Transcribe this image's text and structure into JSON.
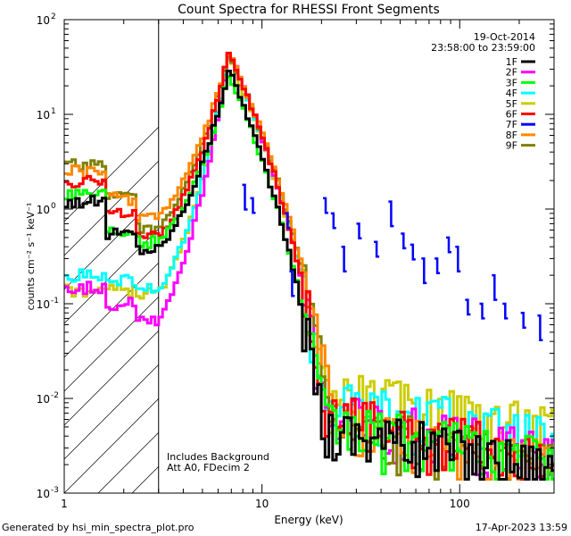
{
  "chart_data": {
    "type": "line",
    "title": "Count Spectra for RHESSI Front Segments",
    "xlabel": "Energy (keV)",
    "ylabel": "counts cm⁻² s⁻¹ keV⁻¹",
    "xscale": "log",
    "yscale": "log",
    "xlim": [
      1,
      300
    ],
    "ylim": [
      0.001,
      100
    ],
    "x_tick_labels": [
      "1",
      "10",
      "100"
    ],
    "y_tick_labels": [
      {
        "base": "10",
        "exp": "-3"
      },
      {
        "base": "10",
        "exp": "-2"
      },
      {
        "base": "10",
        "exp": "-1"
      },
      {
        "base": "10",
        "exp": "0"
      },
      {
        "base": "10",
        "exp": "1"
      },
      {
        "base": "10",
        "exp": "2"
      }
    ],
    "date": "19-Oct-2014",
    "time_range": "23:58:00 to 23:59:00",
    "annotations": [
      "Includes Background",
      "Att A0, FDecim 2"
    ],
    "excluded_region_below_keV": 3,
    "legend_position": "top-right",
    "series": [
      {
        "name": "1F",
        "color": "#000000",
        "peak": 30,
        "thermal_kT": 1.05,
        "floor": 0.0045,
        "low": [
          1.2,
          0.55,
          0.38
        ]
      },
      {
        "name": "2F",
        "color": "#ff00ff",
        "peak": 45,
        "thermal_kT": 1.1,
        "floor": 0.006,
        "low": [
          0.15,
          0.1,
          0.07
        ]
      },
      {
        "name": "3F",
        "color": "#00ff00",
        "peak": 26,
        "thermal_kT": 1.1,
        "floor": 0.005,
        "low": [
          1.5,
          0.6,
          0.45
        ]
      },
      {
        "name": "4F",
        "color": "#00ffff",
        "peak": 42,
        "thermal_kT": 1.15,
        "floor": 0.009,
        "low": [
          0.2,
          0.18,
          0.14
        ]
      },
      {
        "name": "5F",
        "color": "#cccc00",
        "peak": 40,
        "thermal_kT": 1.15,
        "floor": 0.011,
        "low": [
          0.14,
          0.14,
          0.13
        ]
      },
      {
        "name": "6F",
        "color": "#ff0000",
        "peak": 46,
        "thermal_kT": 1.1,
        "floor": 0.006,
        "low": [
          2.0,
          0.9,
          0.5
        ]
      },
      {
        "name": "7F",
        "color": "#0000ff",
        "peak": null,
        "thermal_kT": null,
        "floor": null,
        "low": [],
        "segments": [
          [
            8.2,
            1.8
          ],
          [
            9.0,
            1.3
          ],
          [
            13.5,
            0.9
          ],
          [
            14.2,
            0.22
          ],
          [
            21,
            1.3
          ],
          [
            23,
            0.9
          ],
          [
            26,
            0.4
          ],
          [
            31,
            0.7
          ],
          [
            38,
            0.45
          ],
          [
            45,
            1.2
          ],
          [
            52,
            0.55
          ],
          [
            58,
            0.42
          ],
          [
            66,
            0.3
          ],
          [
            77,
            0.3
          ],
          [
            88,
            0.5
          ],
          [
            98,
            0.4
          ],
          [
            110,
            0.11
          ],
          [
            130,
            0.1
          ],
          [
            150,
            0.2
          ],
          [
            170,
            0.1
          ],
          [
            210,
            0.08
          ],
          [
            255,
            0.075
          ]
        ]
      },
      {
        "name": "8F",
        "color": "#ff8800",
        "peak": 44,
        "thermal_kT": 1.2,
        "floor": 0.005,
        "low": [
          2.5,
          1.3,
          0.85
        ]
      },
      {
        "name": "9F",
        "color": "#808000",
        "peak": 42,
        "thermal_kT": 1.2,
        "floor": 0.005,
        "low": [
          2.9,
          1.5,
          0.65
        ]
      }
    ]
  },
  "footer": {
    "generated_by": "Generated by hsi_min_spectra_plot.pro",
    "timestamp": "17-Apr-2023 13:59"
  }
}
